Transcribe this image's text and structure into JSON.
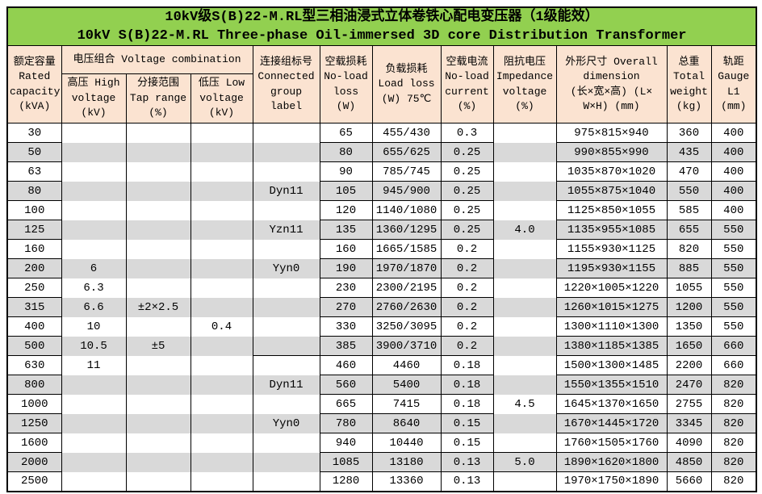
{
  "title": {
    "line1": "10kV级S(B)22-M.RL型三相油浸式立体卷铁心配电变压器（1级能效）",
    "line2": "10kV S(B)22-M.RL Three-phase Oil-immersed 3D core Distribution Transformer"
  },
  "colors": {
    "title_bg": "#92D050",
    "header_bg": "#FBE3D1",
    "row_stripe": "#D9D9D9",
    "border": "#000000"
  },
  "table": {
    "headers": {
      "capacity": "额定容量\nRated\ncapacity\n(kVA)",
      "voltage_group": "电压组合 Voltage combination",
      "hv": "高压 High\nvoltage\n(kV)",
      "tap": "分接范围\nTap range\n(%)",
      "lv": "低压 Low\nvoltage\n(kV)",
      "group": "连接组标号\nConnected\ngroup\nlabel",
      "noload": "空载损耗\nNo-load\nloss\n(W)",
      "load": "负载损耗\nLoad loss\n(W) 75℃",
      "current": "空载电流\nNo-load\ncurrent\n(%)",
      "imped": "阻抗电压\nImpedance\nvoltage\n(%)",
      "dim": "外形尺寸 Overall\ndimension\n(长×宽×高) (L×\nW×H) (mm)",
      "weight": "总重\nTotal\nweight\n(kg)",
      "gauge": "轨距\nGauge\nL1\n(mm)"
    },
    "col_keys": [
      "capacity",
      "hv",
      "tap",
      "lv",
      "group",
      "noload",
      "load",
      "current",
      "imped",
      "dim",
      "weight",
      "gauge"
    ],
    "rows": [
      {
        "capacity": "30",
        "hv": "",
        "tap": "",
        "lv": "",
        "group": "",
        "noload": "65",
        "load": "455/430",
        "current": "0.3",
        "imped": "",
        "dim": "975×815×940",
        "weight": "360",
        "gauge": "400"
      },
      {
        "capacity": "50",
        "hv": "",
        "tap": "",
        "lv": "",
        "group": "",
        "noload": "80",
        "load": "655/625",
        "current": "0.25",
        "imped": "",
        "dim": "990×855×990",
        "weight": "435",
        "gauge": "400"
      },
      {
        "capacity": "63",
        "hv": "",
        "tap": "",
        "lv": "",
        "group": "",
        "noload": "90",
        "load": "785/745",
        "current": "0.25",
        "imped": "",
        "dim": "1035×870×1020",
        "weight": "470",
        "gauge": "400"
      },
      {
        "capacity": "80",
        "hv": "",
        "tap": "",
        "lv": "",
        "group": "Dyn11",
        "noload": "105",
        "load": "945/900",
        "current": "0.25",
        "imped": "",
        "dim": "1055×875×1040",
        "weight": "550",
        "gauge": "400"
      },
      {
        "capacity": "100",
        "hv": "",
        "tap": "",
        "lv": "",
        "group": "",
        "noload": "120",
        "load": "1140/1080",
        "current": "0.25",
        "imped": "",
        "dim": "1125×850×1055",
        "weight": "585",
        "gauge": "400"
      },
      {
        "capacity": "125",
        "hv": "",
        "tap": "",
        "lv": "",
        "group": "Yzn11",
        "noload": "135",
        "load": "1360/1295",
        "current": "0.25",
        "imped": "4.0",
        "dim": "1135×955×1085",
        "weight": "655",
        "gauge": "550"
      },
      {
        "capacity": "160",
        "hv": "",
        "tap": "",
        "lv": "",
        "group": "",
        "noload": "160",
        "load": "1665/1585",
        "current": "0.2",
        "imped": "",
        "dim": "1155×930×1125",
        "weight": "820",
        "gauge": "550"
      },
      {
        "capacity": "200",
        "hv": "6",
        "tap": "",
        "lv": "",
        "group": "Yyn0",
        "noload": "190",
        "load": "1970/1870",
        "current": "0.2",
        "imped": "",
        "dim": "1195×930×1155",
        "weight": "885",
        "gauge": "550"
      },
      {
        "capacity": "250",
        "hv": "6.3",
        "tap": "",
        "lv": "",
        "group": "",
        "noload": "230",
        "load": "2300/2195",
        "current": "0.2",
        "imped": "",
        "dim": "1220×1005×1220",
        "weight": "1055",
        "gauge": "550"
      },
      {
        "capacity": "315",
        "hv": "6.6",
        "tap": "±2×2.5",
        "lv": "",
        "group": "",
        "noload": "270",
        "load": "2760/2630",
        "current": "0.2",
        "imped": "",
        "dim": "1260×1015×1275",
        "weight": "1200",
        "gauge": "550"
      },
      {
        "capacity": "400",
        "hv": "10",
        "tap": "",
        "lv": "0.4",
        "group": "",
        "noload": "330",
        "load": "3250/3095",
        "current": "0.2",
        "imped": "",
        "dim": "1300×1110×1300",
        "weight": "1350",
        "gauge": "550"
      },
      {
        "capacity": "500",
        "hv": "10.5",
        "tap": "±5",
        "lv": "",
        "group": "",
        "noload": "385",
        "load": "3900/3710",
        "current": "0.2",
        "imped": "",
        "dim": "1380×1185×1385",
        "weight": "1650",
        "gauge": "660"
      },
      {
        "capacity": "630",
        "hv": "11",
        "tap": "",
        "lv": "",
        "group": "",
        "noload": "460",
        "load": "4460",
        "current": "0.18",
        "imped": "",
        "dim": "1500×1300×1485",
        "weight": "2200",
        "gauge": "660"
      },
      {
        "capacity": "800",
        "hv": "",
        "tap": "",
        "lv": "",
        "group": "Dyn11",
        "noload": "560",
        "load": "5400",
        "current": "0.18",
        "imped": "",
        "dim": "1550×1355×1510",
        "weight": "2470",
        "gauge": "820"
      },
      {
        "capacity": "1000",
        "hv": "",
        "tap": "",
        "lv": "",
        "group": "",
        "noload": "665",
        "load": "7415",
        "current": "0.18",
        "imped": "4.5",
        "dim": "1645×1370×1650",
        "weight": "2755",
        "gauge": "820"
      },
      {
        "capacity": "1250",
        "hv": "",
        "tap": "",
        "lv": "",
        "group": "Yyn0",
        "noload": "780",
        "load": "8640",
        "current": "0.15",
        "imped": "",
        "dim": "1670×1445×1720",
        "weight": "3345",
        "gauge": "820"
      },
      {
        "capacity": "1600",
        "hv": "",
        "tap": "",
        "lv": "",
        "group": "",
        "noload": "940",
        "load": "10440",
        "current": "0.15",
        "imped": "",
        "dim": "1760×1505×1760",
        "weight": "4090",
        "gauge": "820"
      },
      {
        "capacity": "2000",
        "hv": "",
        "tap": "",
        "lv": "",
        "group": "",
        "noload": "1085",
        "load": "13180",
        "current": "0.13",
        "imped": "5.0",
        "dim": "1890×1620×1800",
        "weight": "4850",
        "gauge": "820"
      },
      {
        "capacity": "2500",
        "hv": "",
        "tap": "",
        "lv": "",
        "group": "",
        "noload": "1280",
        "load": "13360",
        "current": "0.13",
        "imped": "",
        "dim": "1970×1750×1890",
        "weight": "5660",
        "gauge": "820"
      }
    ]
  }
}
